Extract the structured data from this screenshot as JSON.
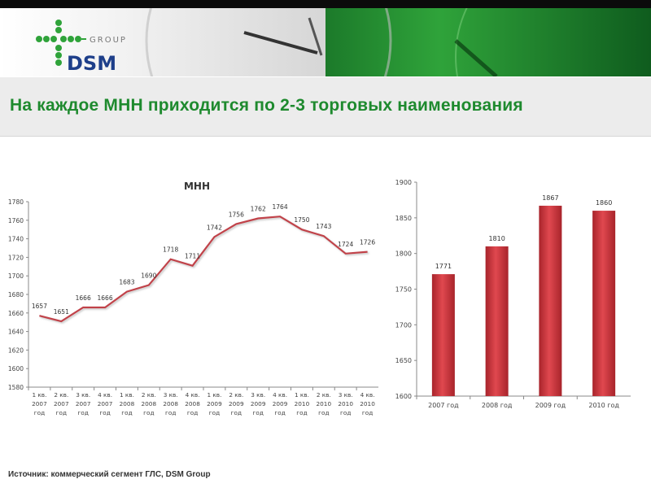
{
  "header": {
    "logo_group": "GROUP",
    "logo_name": "DSM",
    "title": "На каждое МНН приходится по 2-3 торговых наименования"
  },
  "footer": {
    "source": "Источник: коммерческий сегмент ГЛС, DSM Group"
  },
  "colors": {
    "accent_green": "#1e8a2e",
    "line": "#c1424a",
    "bar": "#c8323a"
  },
  "chart_data": [
    {
      "type": "line",
      "title": "МНН",
      "categories": [
        [
          "1 кв.",
          "2007",
          "год"
        ],
        [
          "2 кв.",
          "2007",
          "год"
        ],
        [
          "3 кв.",
          "2007",
          "год"
        ],
        [
          "4 кв.",
          "2007",
          "год"
        ],
        [
          "1 кв.",
          "2008",
          "год"
        ],
        [
          "2 кв.",
          "2008",
          "год"
        ],
        [
          "3 кв.",
          "2008",
          "год"
        ],
        [
          "4 кв.",
          "2008",
          "год"
        ],
        [
          "1 кв.",
          "2009",
          "год"
        ],
        [
          "2 кв.",
          "2009",
          "год"
        ],
        [
          "3 кв.",
          "2009",
          "год"
        ],
        [
          "4 кв.",
          "2009",
          "год"
        ],
        [
          "1 кв.",
          "2010",
          "год"
        ],
        [
          "2 кв.",
          "2010",
          "год"
        ],
        [
          "3 кв.",
          "2010",
          "год"
        ],
        [
          "4 кв.",
          "2010",
          "год"
        ]
      ],
      "values": [
        1657,
        1651,
        1666,
        1666,
        1683,
        1690,
        1718,
        1711,
        1742,
        1756,
        1762,
        1764,
        1750,
        1743,
        1724,
        1726
      ],
      "ylim": [
        1580,
        1780
      ],
      "yticks": [
        1580,
        1600,
        1620,
        1640,
        1660,
        1680,
        1700,
        1720,
        1740,
        1760,
        1780
      ],
      "grid": false,
      "data_labels": true
    },
    {
      "type": "bar",
      "categories": [
        "2007 год",
        "2008 год",
        "2009 год",
        "2010 год"
      ],
      "values": [
        1771,
        1810,
        1867,
        1860
      ],
      "ylim": [
        1600,
        1900
      ],
      "yticks": [
        1600,
        1650,
        1700,
        1750,
        1800,
        1850,
        1900
      ],
      "grid": false,
      "data_labels": true
    }
  ]
}
